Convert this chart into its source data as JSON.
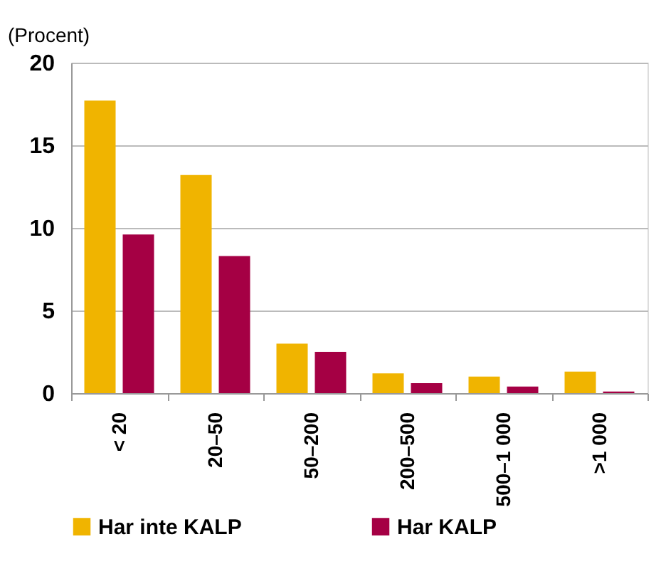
{
  "chart_data": {
    "type": "bar",
    "ylabel": "(Procent)",
    "categories": [
      "< 20",
      "20–50",
      "50–200",
      "200–500",
      "500–1 000",
      ">1 000"
    ],
    "series": [
      {
        "name": "Har inte KALP",
        "color": "#f0b400",
        "values": [
          17.7,
          13.2,
          3.0,
          1.2,
          1.0,
          1.3
        ]
      },
      {
        "name": "Har KALP",
        "color": "#a50044",
        "values": [
          9.6,
          8.3,
          2.5,
          0.6,
          0.4,
          0.1
        ]
      }
    ],
    "ylim": [
      0,
      20
    ],
    "yticks": [
      0,
      5,
      10,
      15,
      20
    ],
    "grid": "y",
    "legend": "bottom"
  }
}
